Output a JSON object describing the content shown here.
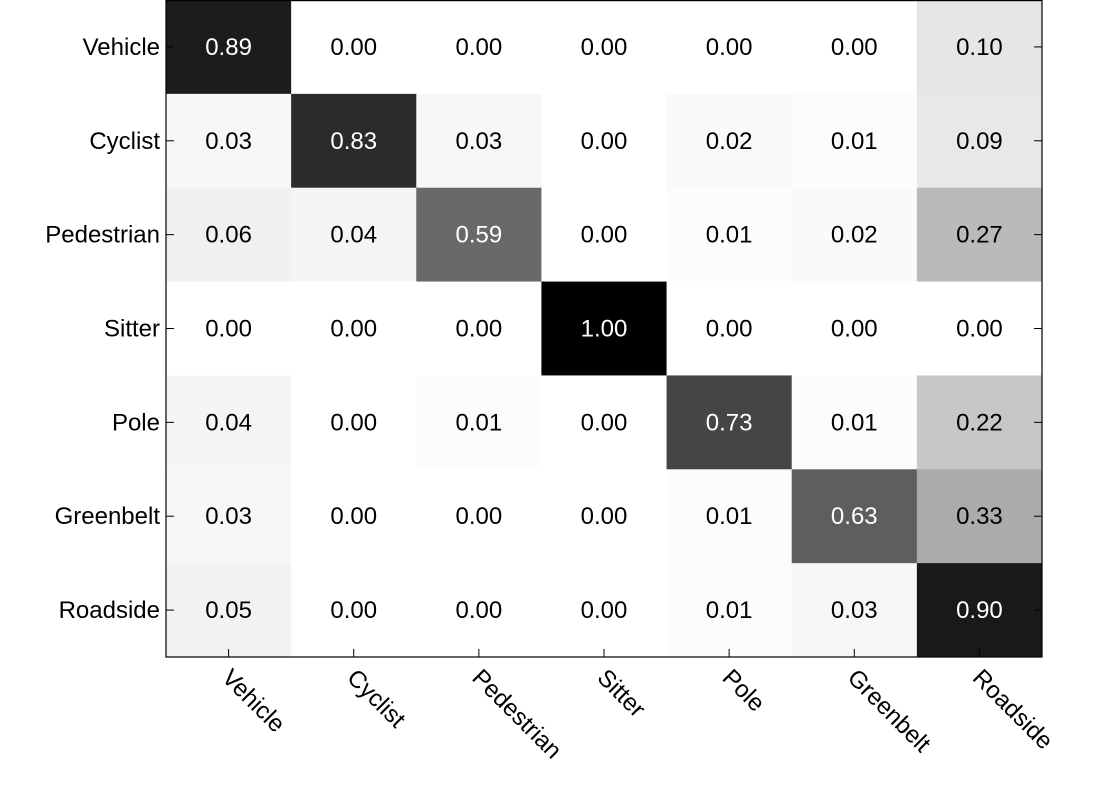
{
  "chart_data": {
    "type": "heatmap",
    "row_labels": [
      "Vehicle",
      "Cyclist",
      "Pedestrian",
      "Sitter",
      "Pole",
      "Greenbelt",
      "Roadside"
    ],
    "col_labels": [
      "Vehicle",
      "Cyclist",
      "Pedestrian",
      "Sitter",
      "Pole",
      "Greenbelt",
      "Roadside"
    ],
    "values": [
      [
        0.89,
        0.0,
        0.0,
        0.0,
        0.0,
        0.0,
        0.1
      ],
      [
        0.03,
        0.83,
        0.03,
        0.0,
        0.02,
        0.01,
        0.09
      ],
      [
        0.06,
        0.04,
        0.59,
        0.0,
        0.01,
        0.02,
        0.27
      ],
      [
        0.0,
        0.0,
        0.0,
        1.0,
        0.0,
        0.0,
        0.0
      ],
      [
        0.04,
        0.0,
        0.01,
        0.0,
        0.73,
        0.01,
        0.22
      ],
      [
        0.03,
        0.0,
        0.0,
        0.0,
        0.01,
        0.63,
        0.33
      ],
      [
        0.05,
        0.0,
        0.0,
        0.0,
        0.01,
        0.03,
        0.9
      ]
    ],
    "value_range": [
      0,
      1
    ],
    "colormap": "grayscale (white = 0, black = 1)",
    "grid": false,
    "legend": "none"
  }
}
